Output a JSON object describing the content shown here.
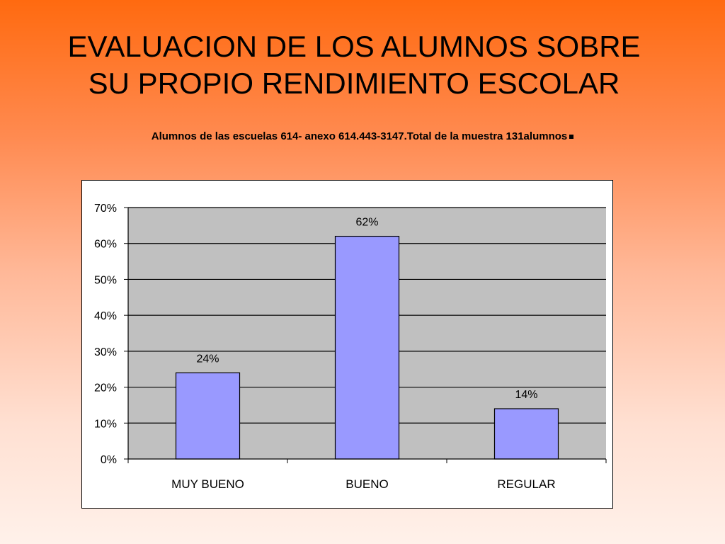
{
  "slide": {
    "title_line1": "EVALUACION DE LOS ALUMNOS SOBRE",
    "title_line2": "SU PROPIO RENDIMIENTO ESCOLAR",
    "subtitle": "Alumnos de las escuelas 614- anexo 614.443-3147.Total de la muestra 131alumnos"
  },
  "colors": {
    "bar_fill": "#9999ff",
    "plot_background": "#c0c0c0",
    "gridline": "#000000"
  },
  "chart_data": {
    "type": "bar",
    "categories": [
      "MUY BUENO",
      "BUENO",
      "REGULAR"
    ],
    "values": [
      24,
      62,
      14
    ],
    "data_labels": [
      "24%",
      "62%",
      "14%"
    ],
    "ylim": [
      0,
      70
    ],
    "y_ticks": [
      0,
      10,
      20,
      30,
      40,
      50,
      60,
      70
    ],
    "y_tick_labels": [
      "0%",
      "10%",
      "20%",
      "30%",
      "40%",
      "50%",
      "60%",
      "70%"
    ],
    "grid": true,
    "legend": "none"
  }
}
